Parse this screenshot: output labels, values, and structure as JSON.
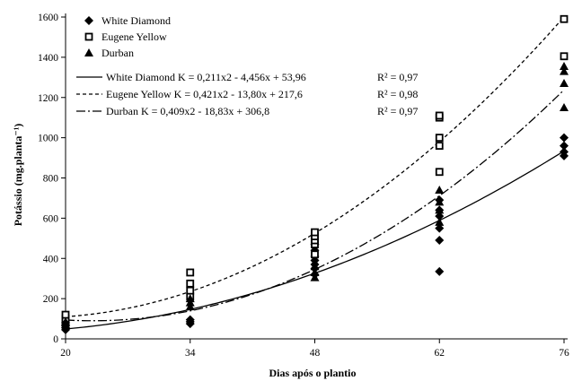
{
  "chart_data": {
    "type": "scatter",
    "xlabel": "Dias após o plantio",
    "ylabel": "Potássio (mg.planta⁻¹)",
    "x_ticks": [
      20,
      34,
      48,
      62,
      76
    ],
    "y_ticks": [
      0,
      200,
      400,
      600,
      800,
      1000,
      1200,
      1400,
      1600
    ],
    "xlim": [
      20,
      76
    ],
    "ylim": [
      0,
      1600
    ],
    "grid": false,
    "legend_position": "top-left",
    "series": [
      {
        "name": "White Diamond",
        "marker": "diamond",
        "points": [
          [
            20,
            45
          ],
          [
            20,
            55
          ],
          [
            20,
            65
          ],
          [
            20,
            80
          ],
          [
            34,
            75
          ],
          [
            34,
            85
          ],
          [
            34,
            95
          ],
          [
            48,
            320
          ],
          [
            48,
            350
          ],
          [
            48,
            370
          ],
          [
            48,
            390
          ],
          [
            48,
            410
          ],
          [
            48,
            440
          ],
          [
            48,
            470
          ],
          [
            62,
            335
          ],
          [
            62,
            490
          ],
          [
            62,
            550
          ],
          [
            62,
            610
          ],
          [
            62,
            640
          ],
          [
            62,
            690
          ],
          [
            76,
            910
          ],
          [
            76,
            930
          ],
          [
            76,
            960
          ],
          [
            76,
            1000
          ]
        ]
      },
      {
        "name": "Eugene Yellow",
        "marker": "square",
        "points": [
          [
            20,
            80
          ],
          [
            20,
            100
          ],
          [
            20,
            120
          ],
          [
            34,
            210
          ],
          [
            34,
            240
          ],
          [
            34,
            275
          ],
          [
            34,
            330
          ],
          [
            48,
            420
          ],
          [
            48,
            470
          ],
          [
            48,
            490
          ],
          [
            48,
            510
          ],
          [
            48,
            530
          ],
          [
            62,
            830
          ],
          [
            62,
            960
          ],
          [
            62,
            1000
          ],
          [
            62,
            1100
          ],
          [
            62,
            1110
          ],
          [
            76,
            1405
          ],
          [
            76,
            1590
          ]
        ]
      },
      {
        "name": "Durban",
        "marker": "triangle",
        "points": [
          [
            20,
            70
          ],
          [
            20,
            85
          ],
          [
            34,
            160
          ],
          [
            34,
            180
          ],
          [
            34,
            200
          ],
          [
            48,
            305
          ],
          [
            48,
            330
          ],
          [
            48,
            360
          ],
          [
            62,
            580
          ],
          [
            62,
            640
          ],
          [
            62,
            680
          ],
          [
            62,
            740
          ],
          [
            76,
            1150
          ],
          [
            76,
            1270
          ],
          [
            76,
            1330
          ],
          [
            76,
            1355
          ]
        ]
      }
    ],
    "regressions": [
      {
        "name": "White Diamond",
        "style": "solid",
        "a": 0.211,
        "b": -4.456,
        "c": 53.96,
        "label": "White Diamond  K = 0,211x2 - 4,456x + 53,96",
        "r2": "R² = 0,97"
      },
      {
        "name": "Eugene Yellow",
        "style": "dashed",
        "a": 0.421,
        "b": -13.8,
        "c": 217.6,
        "label": "Eugene Yellow  K = 0,421x2 - 13,80x + 217,6",
        "r2": "R² = 0,98"
      },
      {
        "name": "Durban",
        "style": "dashdot",
        "a": 0.409,
        "b": -18.83,
        "c": 306.8,
        "label": "Durban  K = 0,409x2 - 18,83x + 306,8",
        "r2": "R² = 0,97"
      }
    ]
  }
}
